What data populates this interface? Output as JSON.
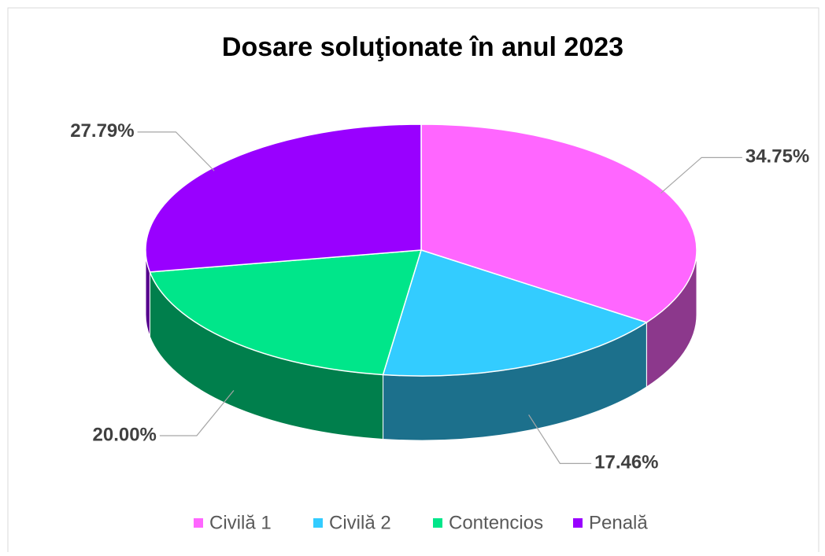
{
  "chart_data": {
    "type": "pie",
    "title": "Dosare soluţionate în anul 2023",
    "categories": [
      "Civilă 1",
      "Civilă 2",
      "Contencios",
      "Penală"
    ],
    "values": [
      34.75,
      17.46,
      20.0,
      27.79
    ],
    "value_labels": [
      "34.75%",
      "17.46%",
      "20.00%",
      "27.79%"
    ],
    "colors": [
      "#ff66ff",
      "#33ccff",
      "#00e68a",
      "#9900ff"
    ],
    "legend": "bottom"
  }
}
